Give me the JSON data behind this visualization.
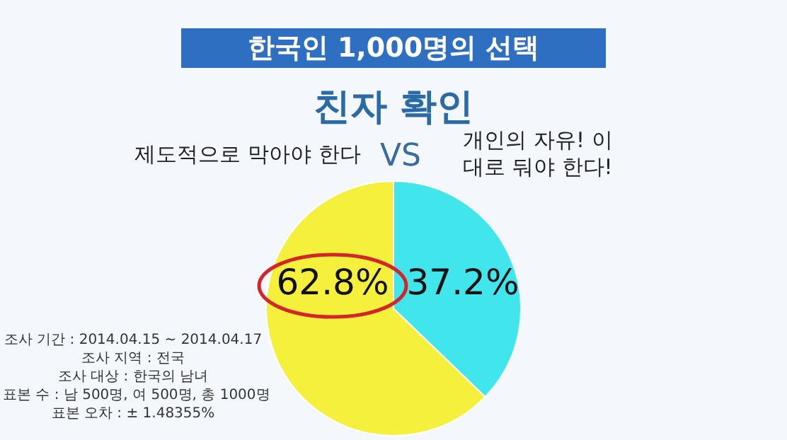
{
  "chart_data": {
    "type": "pie",
    "title": "한국인 1,000명의 선택",
    "subtitle": "친자 확인",
    "categories": [
      "제도적으로 막아야 한다",
      "개인의 자유! 이대로 둬야 한다!"
    ],
    "values": [
      62.8,
      37.2
    ],
    "colors": [
      "#f4f03c",
      "#40e6ec"
    ],
    "value_labels": [
      "62.8%",
      "37.2%"
    ],
    "annotations": [
      "VS",
      "조사 기간 : 2014.04.15 ~ 2014.04.17",
      "조사 지역 : 전국",
      "조사 대상 : 한국의 남녀",
      "표본 수 : 남 500명, 여 500명, 총 1000명",
      "표본 오차 : ± 1.48355%"
    ]
  }
}
